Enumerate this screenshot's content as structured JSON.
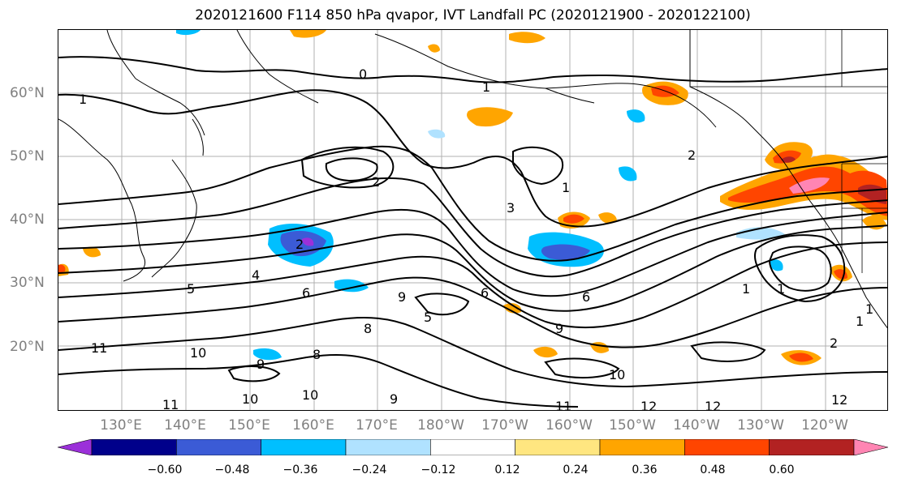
{
  "title": "2020121600 F114 850 hPa qvapor, IVT Landfall PC (2020121900 - 2020122100)",
  "lat_labels": [
    "60°N",
    "50°N",
    "40°N",
    "30°N",
    "20°N"
  ],
  "lon_labels": [
    "130°E",
    "140°E",
    "150°E",
    "160°E",
    "170°E",
    "180°W",
    "170°W",
    "160°W",
    "150°W",
    "140°W",
    "130°W",
    "120°W"
  ],
  "colorbar": {
    "ticks": [
      "−0.60",
      "−0.48",
      "−0.36",
      "−0.24",
      "−0.12",
      "0.12",
      "0.24",
      "0.36",
      "0.48",
      "0.60"
    ],
    "colors": [
      "#9b30d9",
      "#00008b",
      "#3b5bd6",
      "#00bfff",
      "#b0e2ff",
      "#ffffff",
      "#ffe680",
      "#ffa500",
      "#ff4500",
      "#b22222",
      "#ff85b3"
    ]
  },
  "contour_labels": [
    "0",
    "1",
    "1",
    "1",
    "2",
    "2",
    "2",
    "1",
    "3",
    "4",
    "5",
    "6",
    "6",
    "6",
    "9",
    "8",
    "5",
    "9",
    "11",
    "10",
    "9",
    "8",
    "10",
    "10",
    "11",
    "11",
    "10",
    "9",
    "12",
    "12",
    "12",
    "2",
    "1",
    "1",
    "1"
  ]
}
